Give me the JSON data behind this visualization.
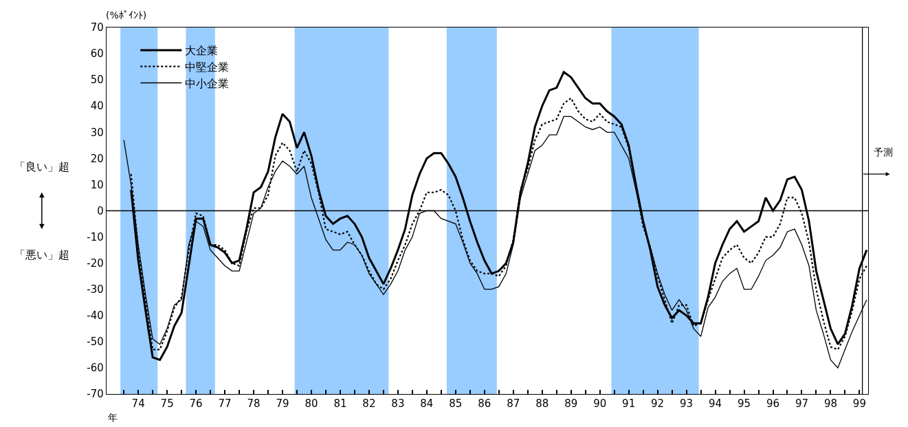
{
  "chart_data": {
    "type": "line",
    "ylabel": "(%ﾎﾟｲﾝﾄ)",
    "xlabel": "年",
    "annotations": [
      "「良い」超",
      "「悪い」超"
    ],
    "x": [
      74,
      74.25,
      74.5,
      74.75,
      75,
      75.25,
      75.5,
      75.75,
      76,
      76.25,
      76.5,
      76.75,
      77,
      77.25,
      77.5,
      77.75,
      78,
      78.25,
      78.5,
      78.75,
      79,
      79.25,
      79.5,
      79.75,
      80,
      80.25,
      80.5,
      80.75,
      81,
      81.25,
      81.5,
      81.75,
      82,
      82.25,
      82.5,
      82.75,
      83,
      83.25,
      83.5,
      83.75,
      84,
      84.25,
      84.5,
      84.75,
      85,
      85.25,
      85.5,
      85.75,
      86,
      86.25,
      86.5,
      86.75,
      87,
      87.25,
      87.5,
      87.75,
      88,
      88.25,
      88.5,
      88.75,
      89,
      89.25,
      89.5,
      89.75,
      90,
      90.25,
      90.5,
      90.75,
      91,
      91.25,
      91.5,
      91.75,
      92,
      92.25,
      92.5,
      92.75,
      93,
      93.25,
      93.5,
      93.75,
      94,
      94.25,
      94.5,
      94.75,
      95,
      95.25,
      95.5,
      95.75,
      96,
      96.25,
      96.5,
      96.75,
      97,
      97.25,
      97.5,
      97.75,
      98,
      98.25,
      98.5,
      98.75,
      99,
      99.25,
      99.5,
      99.75
    ],
    "series": [
      {
        "name": "大企業",
        "color": "#000000",
        "line_style": "solid",
        "values": [
          null,
          8,
          -19,
          -38,
          -56,
          -57,
          -52,
          -44,
          -39,
          -21,
          -3,
          -3,
          -13,
          -14,
          -16,
          -20,
          -19,
          -7,
          7,
          9,
          15,
          28,
          37,
          34,
          24,
          30,
          21,
          8,
          -2,
          -5,
          -3,
          -2,
          -5,
          -10,
          -18,
          -23,
          -28,
          -22,
          -15,
          -7,
          6,
          14,
          20,
          22,
          22,
          18,
          13,
          5,
          -4,
          -12,
          -19,
          -24,
          -23,
          -20,
          -12,
          7,
          18,
          32,
          40,
          46,
          47,
          53,
          51,
          47,
          43,
          41,
          41,
          38,
          36,
          33,
          25,
          10,
          -4,
          -15,
          -29,
          -36,
          -41,
          -38,
          -40,
          -43,
          -43,
          -33,
          -20,
          -13,
          -7,
          -4,
          -8,
          -6,
          -4,
          5,
          0,
          4,
          12,
          13,
          8,
          -4,
          -23,
          -34,
          -45,
          -51,
          -47,
          -36,
          -22,
          -15
        ]
      },
      {
        "name": "中堅企業",
        "color": "#000000",
        "line_style": "dotted",
        "values": [
          null,
          14,
          -15,
          -34,
          -53,
          -53,
          -46,
          -37,
          -33,
          -15,
          -1,
          -2,
          -13,
          -13,
          -15,
          -20,
          -21,
          -8,
          1,
          1,
          6,
          21,
          26,
          23,
          15,
          23,
          18,
          7,
          -7,
          -8,
          -9,
          -8,
          -13,
          -17,
          -23,
          -28,
          -30,
          -26,
          -19,
          -13,
          -5,
          0,
          7,
          7,
          8,
          6,
          0,
          -11,
          -19,
          -23,
          -24,
          -24,
          -25,
          -21,
          -11,
          8,
          16,
          27,
          33,
          34,
          35,
          41,
          43,
          38,
          35,
          34,
          37,
          34,
          33,
          32,
          24,
          9,
          -6,
          -14,
          -25,
          -34,
          -43,
          -36,
          -36,
          -44,
          -43,
          -34,
          -26,
          -18,
          -15,
          -13,
          -18,
          -20,
          -16,
          -10,
          -10,
          -5,
          5,
          5,
          -1,
          -12,
          -30,
          -42,
          -52,
          -53,
          -48,
          -38,
          -26,
          -21
        ]
      },
      {
        "name": "中小企業",
        "color": "#000000",
        "line_style": "solid",
        "values": [
          27,
          10,
          -13,
          -32,
          -49,
          -51,
          -45,
          -36,
          -34,
          -13,
          -4,
          -6,
          -15,
          -18,
          -21,
          -23,
          -23,
          -12,
          -1,
          1,
          9,
          15,
          19,
          17,
          14,
          17,
          5,
          -3,
          -11,
          -15,
          -15,
          -12,
          -13,
          -17,
          -24,
          -28,
          -32,
          -28,
          -23,
          -15,
          -10,
          -1,
          0,
          0,
          -3,
          -4,
          -5,
          -12,
          -20,
          -24,
          -30,
          -30,
          -29,
          -24,
          -13,
          5,
          14,
          23,
          25,
          29,
          29,
          36,
          36,
          34,
          32,
          31,
          32,
          30,
          30,
          25,
          20,
          8,
          -5,
          -14,
          -24,
          -32,
          -38,
          -34,
          -38,
          -45,
          -48,
          -37,
          -33,
          -27,
          -24,
          -22,
          -30,
          -30,
          -25,
          -19,
          -17,
          -14,
          -8,
          -7,
          -13,
          -21,
          -38,
          -47,
          -57,
          -60,
          -53,
          -46,
          -40,
          -34
        ]
      }
    ],
    "bands": [
      {
        "axis": "x",
        "from": 73.88,
        "to": 75.17,
        "color": "#99ccff"
      },
      {
        "axis": "x",
        "from": 76.15,
        "to": 77.16,
        "color": "#99ccff"
      },
      {
        "axis": "x",
        "from": 79.92,
        "to": 83.18,
        "color": "#99ccff"
      },
      {
        "axis": "x",
        "from": 85.19,
        "to": 86.93,
        "color": "#99ccff"
      },
      {
        "axis": "x",
        "from": 90.9,
        "to": 93.93,
        "color": "#99ccff"
      }
    ],
    "ref_lines": [
      {
        "axis": "y",
        "value": 0,
        "color": "#000000"
      },
      {
        "axis": "x",
        "value": 99.6,
        "label": "予測",
        "color": "#000000"
      }
    ],
    "xlim": [
      73.4,
      99.8
    ],
    "xticks": [
      {
        "value": 74,
        "label": null
      },
      {
        "value": 74.5,
        "label": "74"
      },
      {
        "value": 75,
        "label": null
      },
      {
        "value": 75.5,
        "label": "75"
      },
      {
        "value": 76,
        "label": null
      },
      {
        "value": 76.5,
        "label": "76"
      },
      {
        "value": 77,
        "label": null
      },
      {
        "value": 77.5,
        "label": "77"
      },
      {
        "value": 78,
        "label": null
      },
      {
        "value": 78.5,
        "label": "78"
      },
      {
        "value": 79,
        "label": null
      },
      {
        "value": 79.5,
        "label": "79"
      },
      {
        "value": 80,
        "label": null
      },
      {
        "value": 80.5,
        "label": "80"
      },
      {
        "value": 81,
        "label": null
      },
      {
        "value": 81.5,
        "label": "81"
      },
      {
        "value": 82,
        "label": null
      },
      {
        "value": 82.5,
        "label": "82"
      },
      {
        "value": 83,
        "label": null
      },
      {
        "value": 83.5,
        "label": "83"
      },
      {
        "value": 84,
        "label": null
      },
      {
        "value": 84.5,
        "label": "84"
      },
      {
        "value": 85,
        "label": null
      },
      {
        "value": 85.5,
        "label": "85"
      },
      {
        "value": 86,
        "label": null
      },
      {
        "value": 86.5,
        "label": "86"
      },
      {
        "value": 87,
        "label": null
      },
      {
        "value": 87.5,
        "label": "87"
      },
      {
        "value": 88,
        "label": null
      },
      {
        "value": 88.5,
        "label": "88"
      },
      {
        "value": 89,
        "label": null
      },
      {
        "value": 89.5,
        "label": "89"
      },
      {
        "value": 90,
        "label": null
      },
      {
        "value": 90.5,
        "label": "90"
      },
      {
        "value": 91,
        "label": null
      },
      {
        "value": 91.5,
        "label": "91"
      },
      {
        "value": 92,
        "label": null
      },
      {
        "value": 92.5,
        "label": "92"
      },
      {
        "value": 93,
        "label": null
      },
      {
        "value": 93.5,
        "label": "93"
      },
      {
        "value": 94,
        "label": null
      },
      {
        "value": 94.5,
        "label": "94"
      },
      {
        "value": 95,
        "label": null
      },
      {
        "value": 95.5,
        "label": "95"
      },
      {
        "value": 96,
        "label": null
      },
      {
        "value": 96.5,
        "label": "96"
      },
      {
        "value": 97,
        "label": null
      },
      {
        "value": 97.5,
        "label": "97"
      },
      {
        "value": 98,
        "label": null
      },
      {
        "value": 98.5,
        "label": "98"
      },
      {
        "value": 99,
        "label": null
      },
      {
        "value": 99.5,
        "label": "99"
      }
    ],
    "ylim": [
      -70,
      70
    ],
    "yticks": [
      -70,
      -60,
      -50,
      -40,
      -30,
      -20,
      -10,
      0,
      10,
      20,
      30,
      40,
      50,
      60,
      70
    ],
    "grid": false,
    "legend": "top left",
    "marker": "none"
  }
}
